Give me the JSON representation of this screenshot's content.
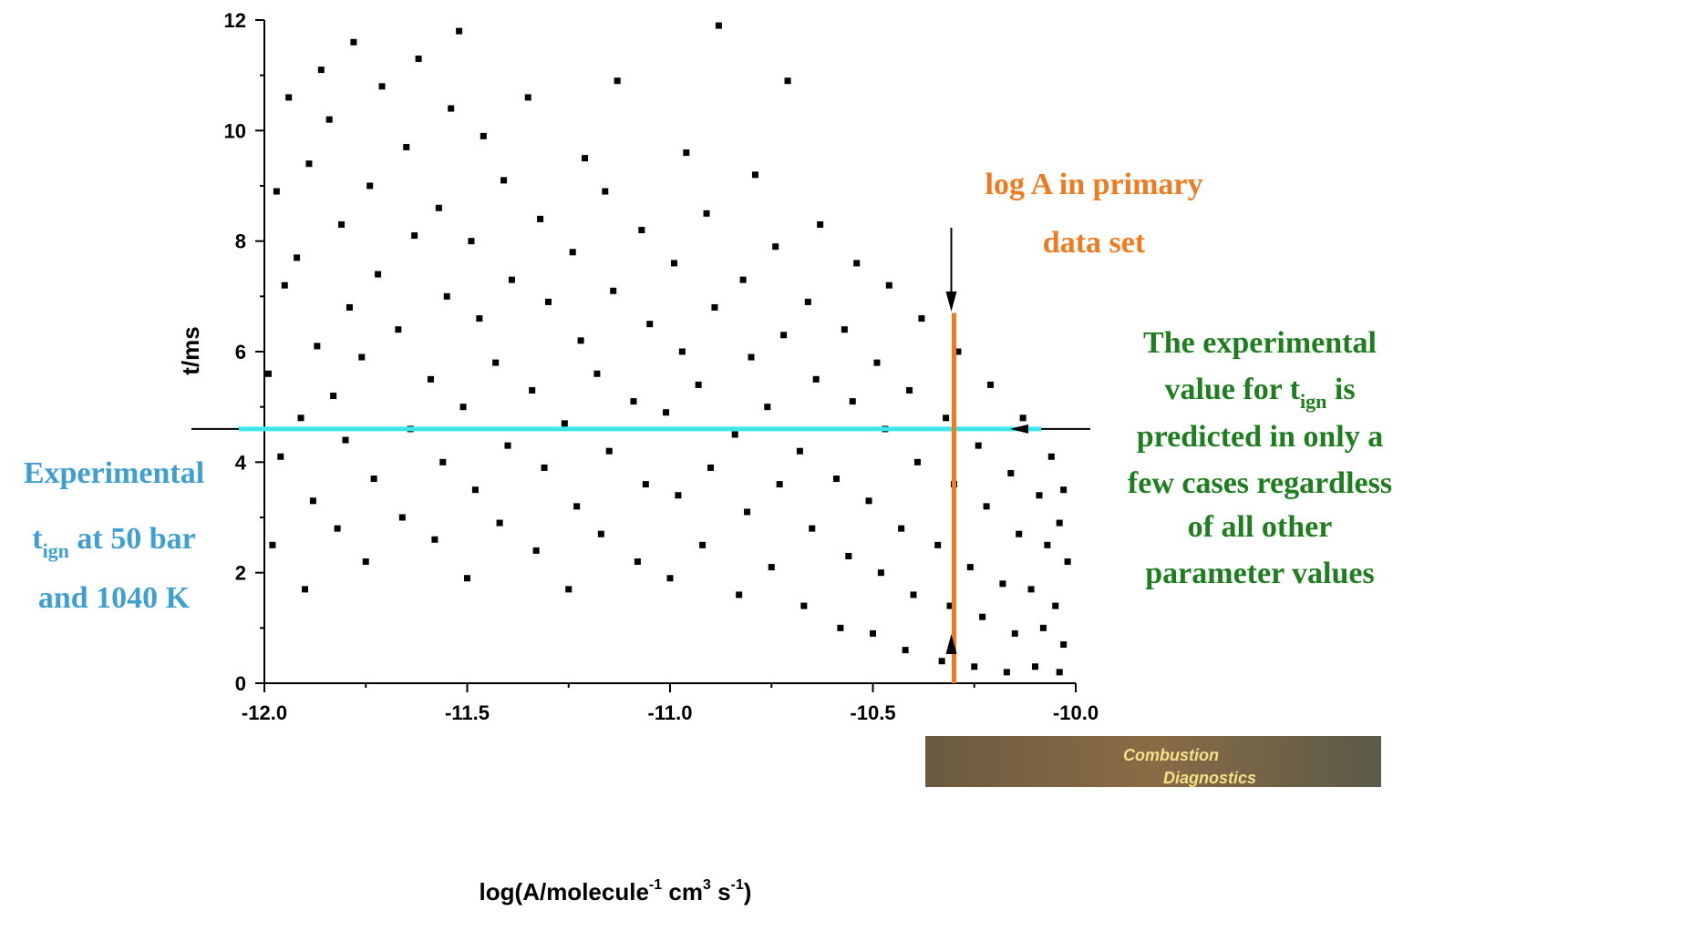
{
  "chart_data": {
    "type": "scatter",
    "x_label": [
      "log(A/molecule",
      {
        "sup": "-1"
      },
      " cm",
      {
        "sup": "3"
      },
      " s",
      {
        "sup": "-1"
      },
      ")"
    ],
    "y_label": "t/ms",
    "xlim": [
      -12,
      -10
    ],
    "ylim": [
      0,
      12
    ],
    "xticks": [
      {
        "value": -12,
        "label": "-12.0"
      },
      -11.5,
      {
        "value": -11,
        "label": "-11.0"
      },
      -10.5,
      {
        "value": -10,
        "label": "-10.0"
      }
    ],
    "yticks": [
      0,
      2,
      4,
      6,
      8,
      10,
      12
    ],
    "color": "#000000",
    "x": [
      -11.98,
      -11.96,
      -11.99,
      -11.95,
      -11.97,
      -11.94,
      -11.9,
      -11.88,
      -11.91,
      -11.87,
      -11.92,
      -11.89,
      -11.86,
      -11.82,
      -11.8,
      -11.83,
      -11.79,
      -11.81,
      -11.84,
      -11.78,
      -11.75,
      -11.73,
      -11.76,
      -11.72,
      -11.74,
      -11.71,
      -11.66,
      -11.64,
      -11.67,
      -11.63,
      -11.65,
      -11.62,
      -11.58,
      -11.56,
      -11.59,
      -11.55,
      -11.57,
      -11.54,
      -11.5,
      -11.48,
      -11.51,
      -11.47,
      -11.49,
      -11.46,
      -11.52,
      -11.42,
      -11.4,
      -11.43,
      -11.39,
      -11.41,
      -11.33,
      -11.31,
      -11.34,
      -11.3,
      -11.32,
      -11.35,
      -11.25,
      -11.23,
      -11.26,
      -11.22,
      -11.24,
      -11.21,
      -11.17,
      -11.15,
      -11.18,
      -11.14,
      -11.16,
      -11.13,
      -11.08,
      -11.06,
      -11.09,
      -11.05,
      -11.07,
      -11.0,
      -10.98,
      -11.01,
      -10.97,
      -10.99,
      -10.96,
      -10.92,
      -10.9,
      -10.93,
      -10.89,
      -10.91,
      -10.88,
      -10.83,
      -10.81,
      -10.84,
      -10.8,
      -10.82,
      -10.79,
      -10.75,
      -10.73,
      -10.76,
      -10.72,
      -10.74,
      -10.71,
      -10.67,
      -10.65,
      -10.68,
      -10.64,
      -10.66,
      -10.63,
      -10.58,
      -10.56,
      -10.59,
      -10.55,
      -10.57,
      -10.54,
      -10.5,
      -10.48,
      -10.51,
      -10.47,
      -10.49,
      -10.46,
      -10.42,
      -10.4,
      -10.43,
      -10.39,
      -10.41,
      -10.38,
      -10.33,
      -10.31,
      -10.34,
      -10.3,
      -10.32,
      -10.29,
      -10.25,
      -10.23,
      -10.26,
      -10.22,
      -10.24,
      -10.21,
      -10.17,
      -10.15,
      -10.18,
      -10.14,
      -10.16,
      -10.13,
      -10.1,
      -10.08,
      -10.11,
      -10.07,
      -10.09,
      -10.06,
      -10.04,
      -10.03,
      -10.05,
      -10.02,
      -10.04,
      -10.03
    ],
    "values": [
      2.5,
      4.1,
      5.6,
      7.2,
      8.9,
      10.6,
      1.7,
      3.3,
      4.8,
      6.1,
      7.7,
      9.4,
      11.1,
      2.8,
      4.4,
      5.2,
      6.8,
      8.3,
      10.2,
      11.6,
      2.2,
      3.7,
      5.9,
      7.4,
      9.0,
      10.8,
      3.0,
      4.6,
      6.4,
      8.1,
      9.7,
      11.3,
      2.6,
      4.0,
      5.5,
      7.0,
      8.6,
      10.4,
      1.9,
      3.5,
      5.0,
      6.6,
      8.0,
      9.9,
      11.8,
      2.9,
      4.3,
      5.8,
      7.3,
      9.1,
      2.4,
      3.9,
      5.3,
      6.9,
      8.4,
      10.6,
      1.7,
      3.2,
      4.7,
      6.2,
      7.8,
      9.5,
      2.7,
      4.2,
      5.6,
      7.1,
      8.9,
      10.9,
      2.2,
      3.6,
      5.1,
      6.5,
      8.2,
      1.9,
      3.4,
      4.9,
      6.0,
      7.6,
      9.6,
      2.5,
      3.9,
      5.4,
      6.8,
      8.5,
      11.9,
      1.6,
      3.1,
      4.5,
      5.9,
      7.3,
      9.2,
      2.1,
      3.6,
      5.0,
      6.3,
      7.9,
      10.9,
      1.4,
      2.8,
      4.2,
      5.5,
      6.9,
      8.3,
      1.0,
      2.3,
      3.7,
      5.1,
      6.4,
      7.6,
      0.9,
      2.0,
      3.3,
      4.6,
      5.8,
      7.2,
      0.6,
      1.6,
      2.8,
      4.0,
      5.3,
      6.6,
      0.4,
      1.4,
      2.5,
      3.6,
      4.8,
      6.0,
      0.3,
      1.2,
      2.1,
      3.2,
      4.3,
      5.4,
      0.2,
      0.9,
      1.8,
      2.7,
      3.8,
      4.8,
      0.3,
      1.0,
      1.7,
      2.5,
      3.4,
      4.1,
      0.2,
      0.7,
      1.4,
      2.2,
      2.9,
      3.5
    ],
    "reference_lines": [
      {
        "axis": "y",
        "value": 4.6,
        "color": "#3de6ee"
      },
      {
        "axis": "x",
        "value": -10.3,
        "color": "#f07a1e",
        "to": 6.7
      }
    ],
    "annotations": [
      {
        "color": "#f07a1e",
        "lines": [
          [
            "log A in primary"
          ],
          [
            "data set"
          ]
        ]
      },
      {
        "color": "#1e7d1e",
        "lines": [
          [
            "The experimental"
          ],
          [
            "value for t",
            {
              "sub": "ign"
            },
            " is"
          ],
          [
            "predicted in only a"
          ],
          [
            "few cases regardless"
          ],
          [
            "of all  other"
          ],
          [
            "parameter values"
          ]
        ]
      },
      {
        "color": "#3f9fd0",
        "lines": [
          [
            "Experimental"
          ],
          [
            "t",
            {
              "sub": "ign"
            },
            " at 50 bar"
          ],
          [
            "and 1040 K"
          ]
        ]
      }
    ]
  },
  "logo": [
    "Combustion",
    "Diagnostics"
  ]
}
